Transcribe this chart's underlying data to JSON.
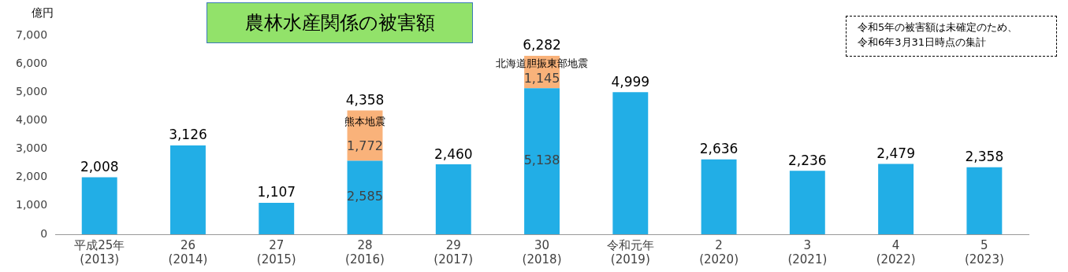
{
  "chart_data": {
    "type": "bar",
    "title": "農林水産関係の被害額",
    "ylabel": "億円",
    "stacked": true,
    "categories": [
      "平成25年\n(2013)",
      "26\n(2014)",
      "27\n(2015)",
      "28\n(2016)",
      "29\n(2017)",
      "30\n(2018)",
      "令和元年\n(2019)",
      "2\n(2020)",
      "3\n(2021)",
      "4\n(2022)",
      "5\n(2023)"
    ],
    "series": [
      {
        "color": "#22aee6",
        "values": [
          2008,
          3126,
          1107,
          2585,
          2460,
          5138,
          4999,
          2636,
          2236,
          2479,
          2358
        ],
        "value_labels": [
          null,
          null,
          null,
          "2,585",
          null,
          "5,138",
          null,
          null,
          null,
          null,
          null
        ]
      },
      {
        "color": "#f9b27a",
        "values": [
          null,
          null,
          null,
          1772,
          null,
          1145,
          null,
          null,
          null,
          null,
          null
        ],
        "value_labels": [
          null,
          null,
          null,
          "1,772",
          null,
          "1,145",
          null,
          null,
          null,
          null,
          null
        ]
      }
    ],
    "totals": [
      "2,008",
      "3,126",
      "1,107",
      "4,358",
      "2,460",
      "6,282",
      "4,999",
      "2,636",
      "2,236",
      "2,479",
      "2,358"
    ],
    "ylim": [
      0,
      7000
    ],
    "yticks": [
      {
        "value": 0,
        "label": "0"
      },
      {
        "value": 1000,
        "label": "1,000"
      },
      {
        "value": 2000,
        "label": "2,000"
      },
      {
        "value": 3000,
        "label": "3,000"
      },
      {
        "value": 4000,
        "label": "4,000"
      },
      {
        "value": 5000,
        "label": "5,000"
      },
      {
        "value": 6000,
        "label": "6,000"
      },
      {
        "value": 7000,
        "label": "7,000"
      }
    ],
    "grid": false,
    "legend": false,
    "annotations": [
      "熊本地震",
      "北海道胆振東部地震",
      "令和5年の被害額は未確定のため、令和6年3月31日時点の集計"
    ]
  }
}
